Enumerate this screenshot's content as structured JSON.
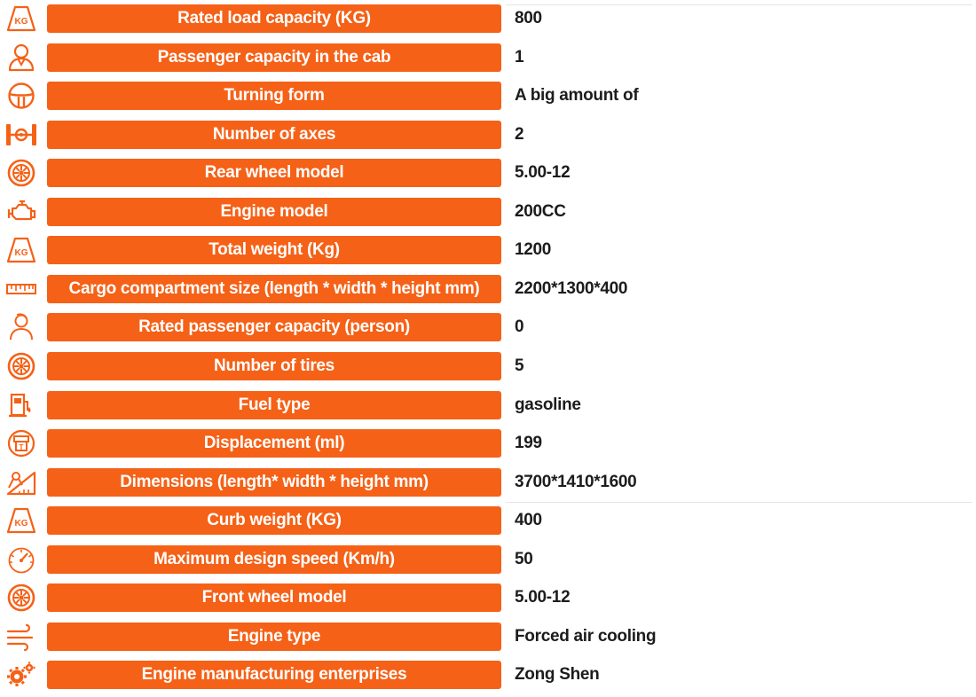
{
  "colors": {
    "accent": "#f56117",
    "label_text": "#ffffff",
    "value_text": "#1c1c1c"
  },
  "specs": [
    {
      "icon": "kg-weight-icon",
      "label": "Rated load capacity (KG)",
      "value": "800"
    },
    {
      "icon": "passenger-icon",
      "label": "Passenger capacity in the cab",
      "value": "1"
    },
    {
      "icon": "steering-wheel-icon",
      "label": "Turning form",
      "value": "A big amount of"
    },
    {
      "icon": "axle-icon",
      "label": "Number of axes",
      "value": "2"
    },
    {
      "icon": "wheel-icon",
      "label": "Rear wheel model",
      "value": "5.00-12"
    },
    {
      "icon": "engine-icon",
      "label": "Engine model",
      "value": "200CC"
    },
    {
      "icon": "kg-weight-icon",
      "label": "Total weight (Kg)",
      "value": "1200"
    },
    {
      "icon": "ruler-icon",
      "label": "Cargo compartment size (length * width * height mm)",
      "value": "2200*1300*400"
    },
    {
      "icon": "person-icon",
      "label": "Rated passenger capacity (person)",
      "value": "0"
    },
    {
      "icon": "wheel-icon",
      "label": "Number of tires",
      "value": "5"
    },
    {
      "icon": "fuel-pump-icon",
      "label": "Fuel type",
      "value": "gasoline"
    },
    {
      "icon": "piston-icon",
      "label": "Displacement (ml)",
      "value": "199"
    },
    {
      "icon": "drafting-compass-icon",
      "label": "Dimensions (length* width * height mm)",
      "value": "3700*1410*1600"
    },
    {
      "icon": "kg-weight-icon",
      "label": "Curb weight (KG)",
      "value": "400"
    },
    {
      "icon": "speedometer-icon",
      "label": "Maximum design speed (Km/h)",
      "value": "50"
    },
    {
      "icon": "wheel-icon",
      "label": "Front wheel model",
      "value": "5.00-12"
    },
    {
      "icon": "air-flow-icon",
      "label": "Engine type",
      "value": "Forced air cooling"
    },
    {
      "icon": "gears-icon",
      "label": "Engine manufacturing enterprises",
      "value": "Zong Shen"
    }
  ]
}
